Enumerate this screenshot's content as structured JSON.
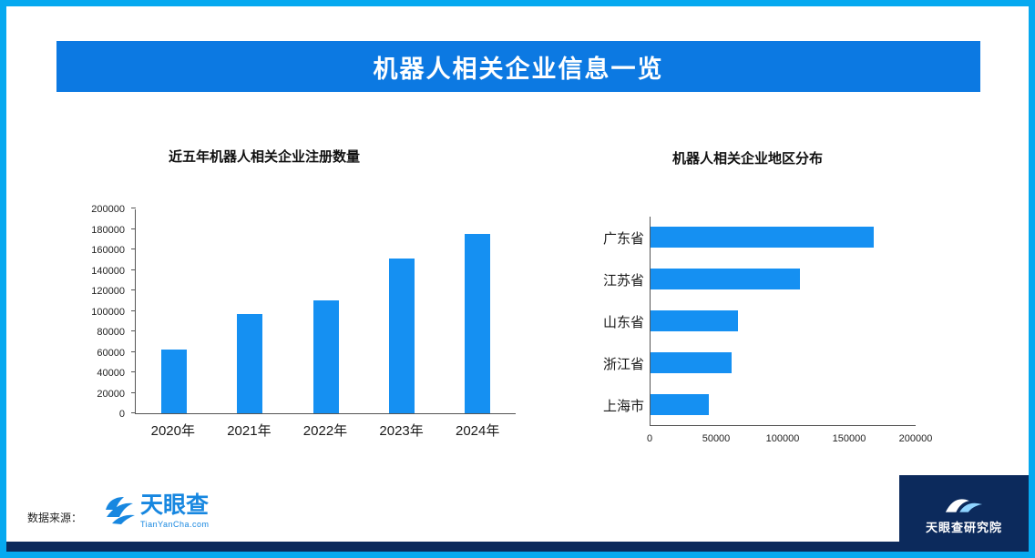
{
  "header": {
    "title": "机器人相关企业信息一览"
  },
  "chart_data": [
    {
      "type": "bar",
      "title": "近五年机器人相关企业注册数量",
      "categories": [
        "2020年",
        "2021年",
        "2022年",
        "2023年",
        "2024年"
      ],
      "values": [
        62000,
        97000,
        110000,
        151000,
        175000
      ],
      "ylim": [
        0,
        200000
      ],
      "ytick_step": 20000,
      "grid": false,
      "bar_color": "#1590f2"
    },
    {
      "type": "horizontal-bar",
      "title": "机器人相关企业地区分布",
      "categories": [
        "广东省",
        "江苏省",
        "山东省",
        "浙江省",
        "上海市"
      ],
      "values": [
        168000,
        112000,
        66000,
        61000,
        44000
      ],
      "xlim": [
        0,
        200000
      ],
      "xticks": [
        0,
        50000,
        100000,
        150000,
        200000
      ],
      "grid": false,
      "bar_color": "#1590f2"
    }
  ],
  "footer": {
    "source_label": "数据来源：",
    "logo_name": "天眼查",
    "logo_subtext": "TianYanCha.com",
    "institute_name": "天眼查研究院"
  },
  "colors": {
    "border": "#06a9f0",
    "banner": "#0c79e2",
    "bar": "#1590f2",
    "navy": "#0c2a5c",
    "logo_blue": "#1787e0"
  }
}
